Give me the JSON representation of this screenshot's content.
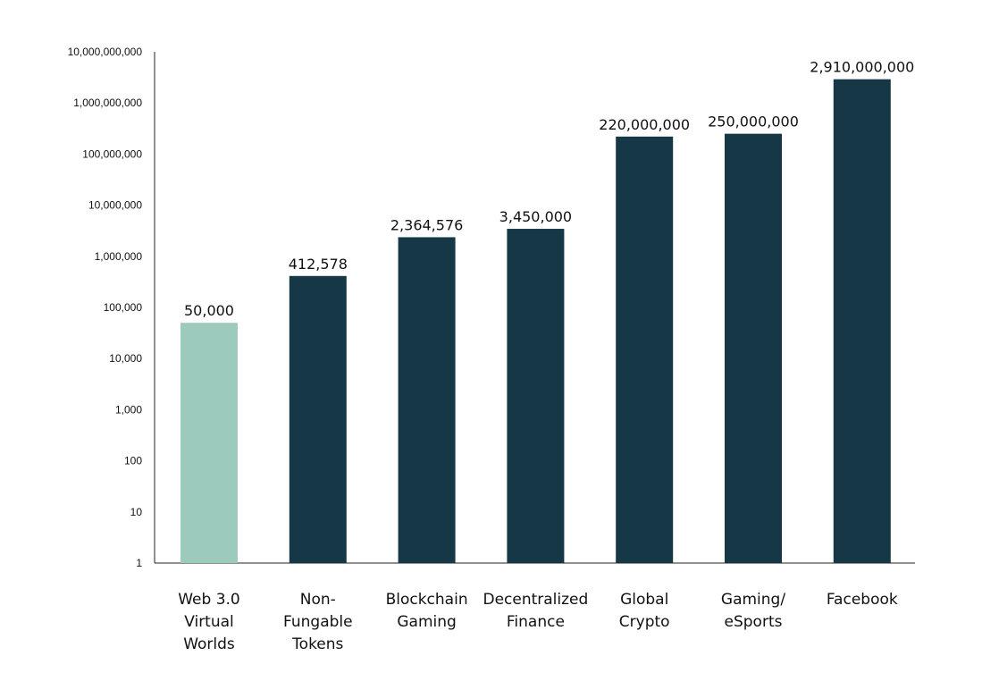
{
  "chart_data": {
    "type": "bar",
    "title": "",
    "xlabel": "",
    "ylabel": "",
    "yscale": "log",
    "ylim": [
      1,
      10000000000
    ],
    "grid": false,
    "legend": "none",
    "y_tick_labels": [
      "1",
      "10",
      "100",
      "1,000",
      "10,000",
      "100,000",
      "1,000,000",
      "10,000,000",
      "100,000,000",
      "1,000,000,000",
      "10,000,000,000"
    ],
    "categories": [
      [
        "Web 3.0",
        "Virtual",
        "Worlds"
      ],
      [
        "Non-",
        "Fungable",
        "Tokens"
      ],
      [
        "Blockchain",
        "Gaming"
      ],
      [
        "Decentralized",
        "Finance"
      ],
      [
        "Global",
        "Crypto"
      ],
      [
        "Gaming/",
        "eSports"
      ],
      [
        "Facebook"
      ]
    ],
    "values": [
      50000,
      412578,
      2364576,
      3450000,
      220000000,
      250000000,
      2910000000
    ],
    "data_labels": [
      "50,000",
      "412,578",
      "2,364,576",
      "3,450,000",
      "220,000,000",
      "250,000,000",
      "2,910,000,000"
    ],
    "colors": {
      "highlight": "#9ccbbd",
      "bar": "#163846",
      "axis": "#222222"
    },
    "highlighted_index": 0
  }
}
